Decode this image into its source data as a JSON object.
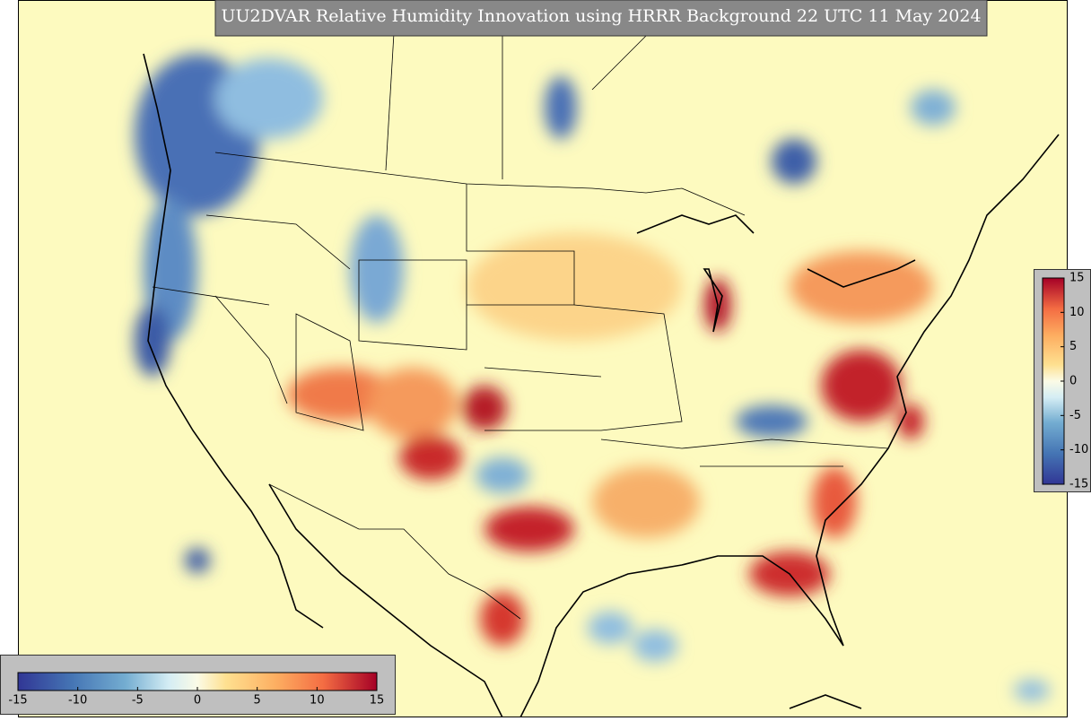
{
  "title": "UU2DVAR Relative Humidity Innovation using HRRR Background 22 UTC 11 May 2024",
  "colorbars": [
    {
      "orientation": "horizontal",
      "lim": [
        -15,
        15
      ],
      "ticks": [
        -15,
        -10,
        -5,
        0,
        5,
        10,
        15
      ]
    },
    {
      "orientation": "vertical",
      "lim": [
        -15,
        15
      ],
      "ticks": [
        15,
        10,
        5,
        0,
        -5,
        -10,
        -15
      ]
    }
  ]
}
